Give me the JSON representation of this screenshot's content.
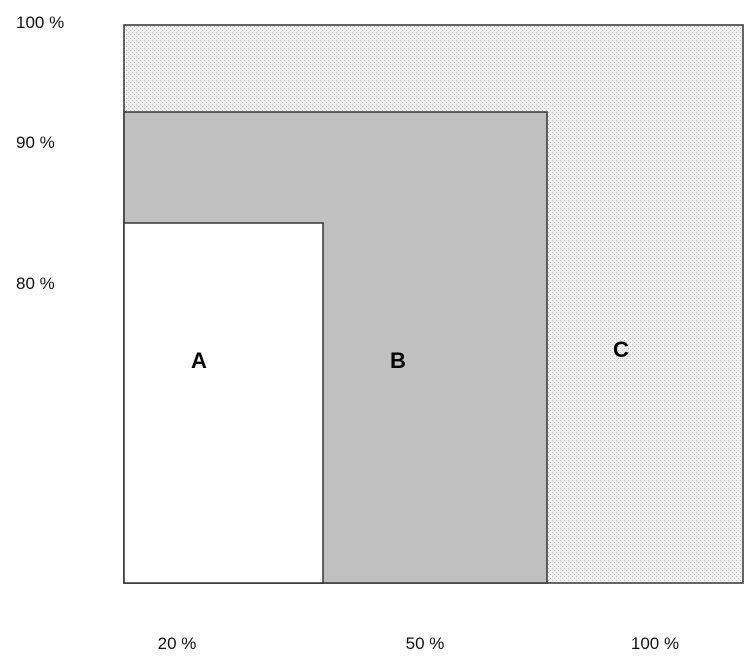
{
  "chart_data": {
    "type": "area",
    "description_note": "",
    "x_ticks": [
      "20 %",
      "50 %",
      "100 %"
    ],
    "y_ticks": [
      "80 %",
      "90 %",
      "100 %"
    ],
    "regions": [
      {
        "label": "A",
        "x_extent": "20 %",
        "y_extent": "80 %",
        "fill": "#ffffff"
      },
      {
        "label": "B",
        "x_extent": "50 %",
        "y_extent": "90 %",
        "fill": "#c0c0c0"
      },
      {
        "label": "C",
        "x_extent": "100 %",
        "y_extent": "100 %",
        "fill": "#e6e6e6"
      }
    ],
    "grid": false,
    "legend": "none"
  }
}
